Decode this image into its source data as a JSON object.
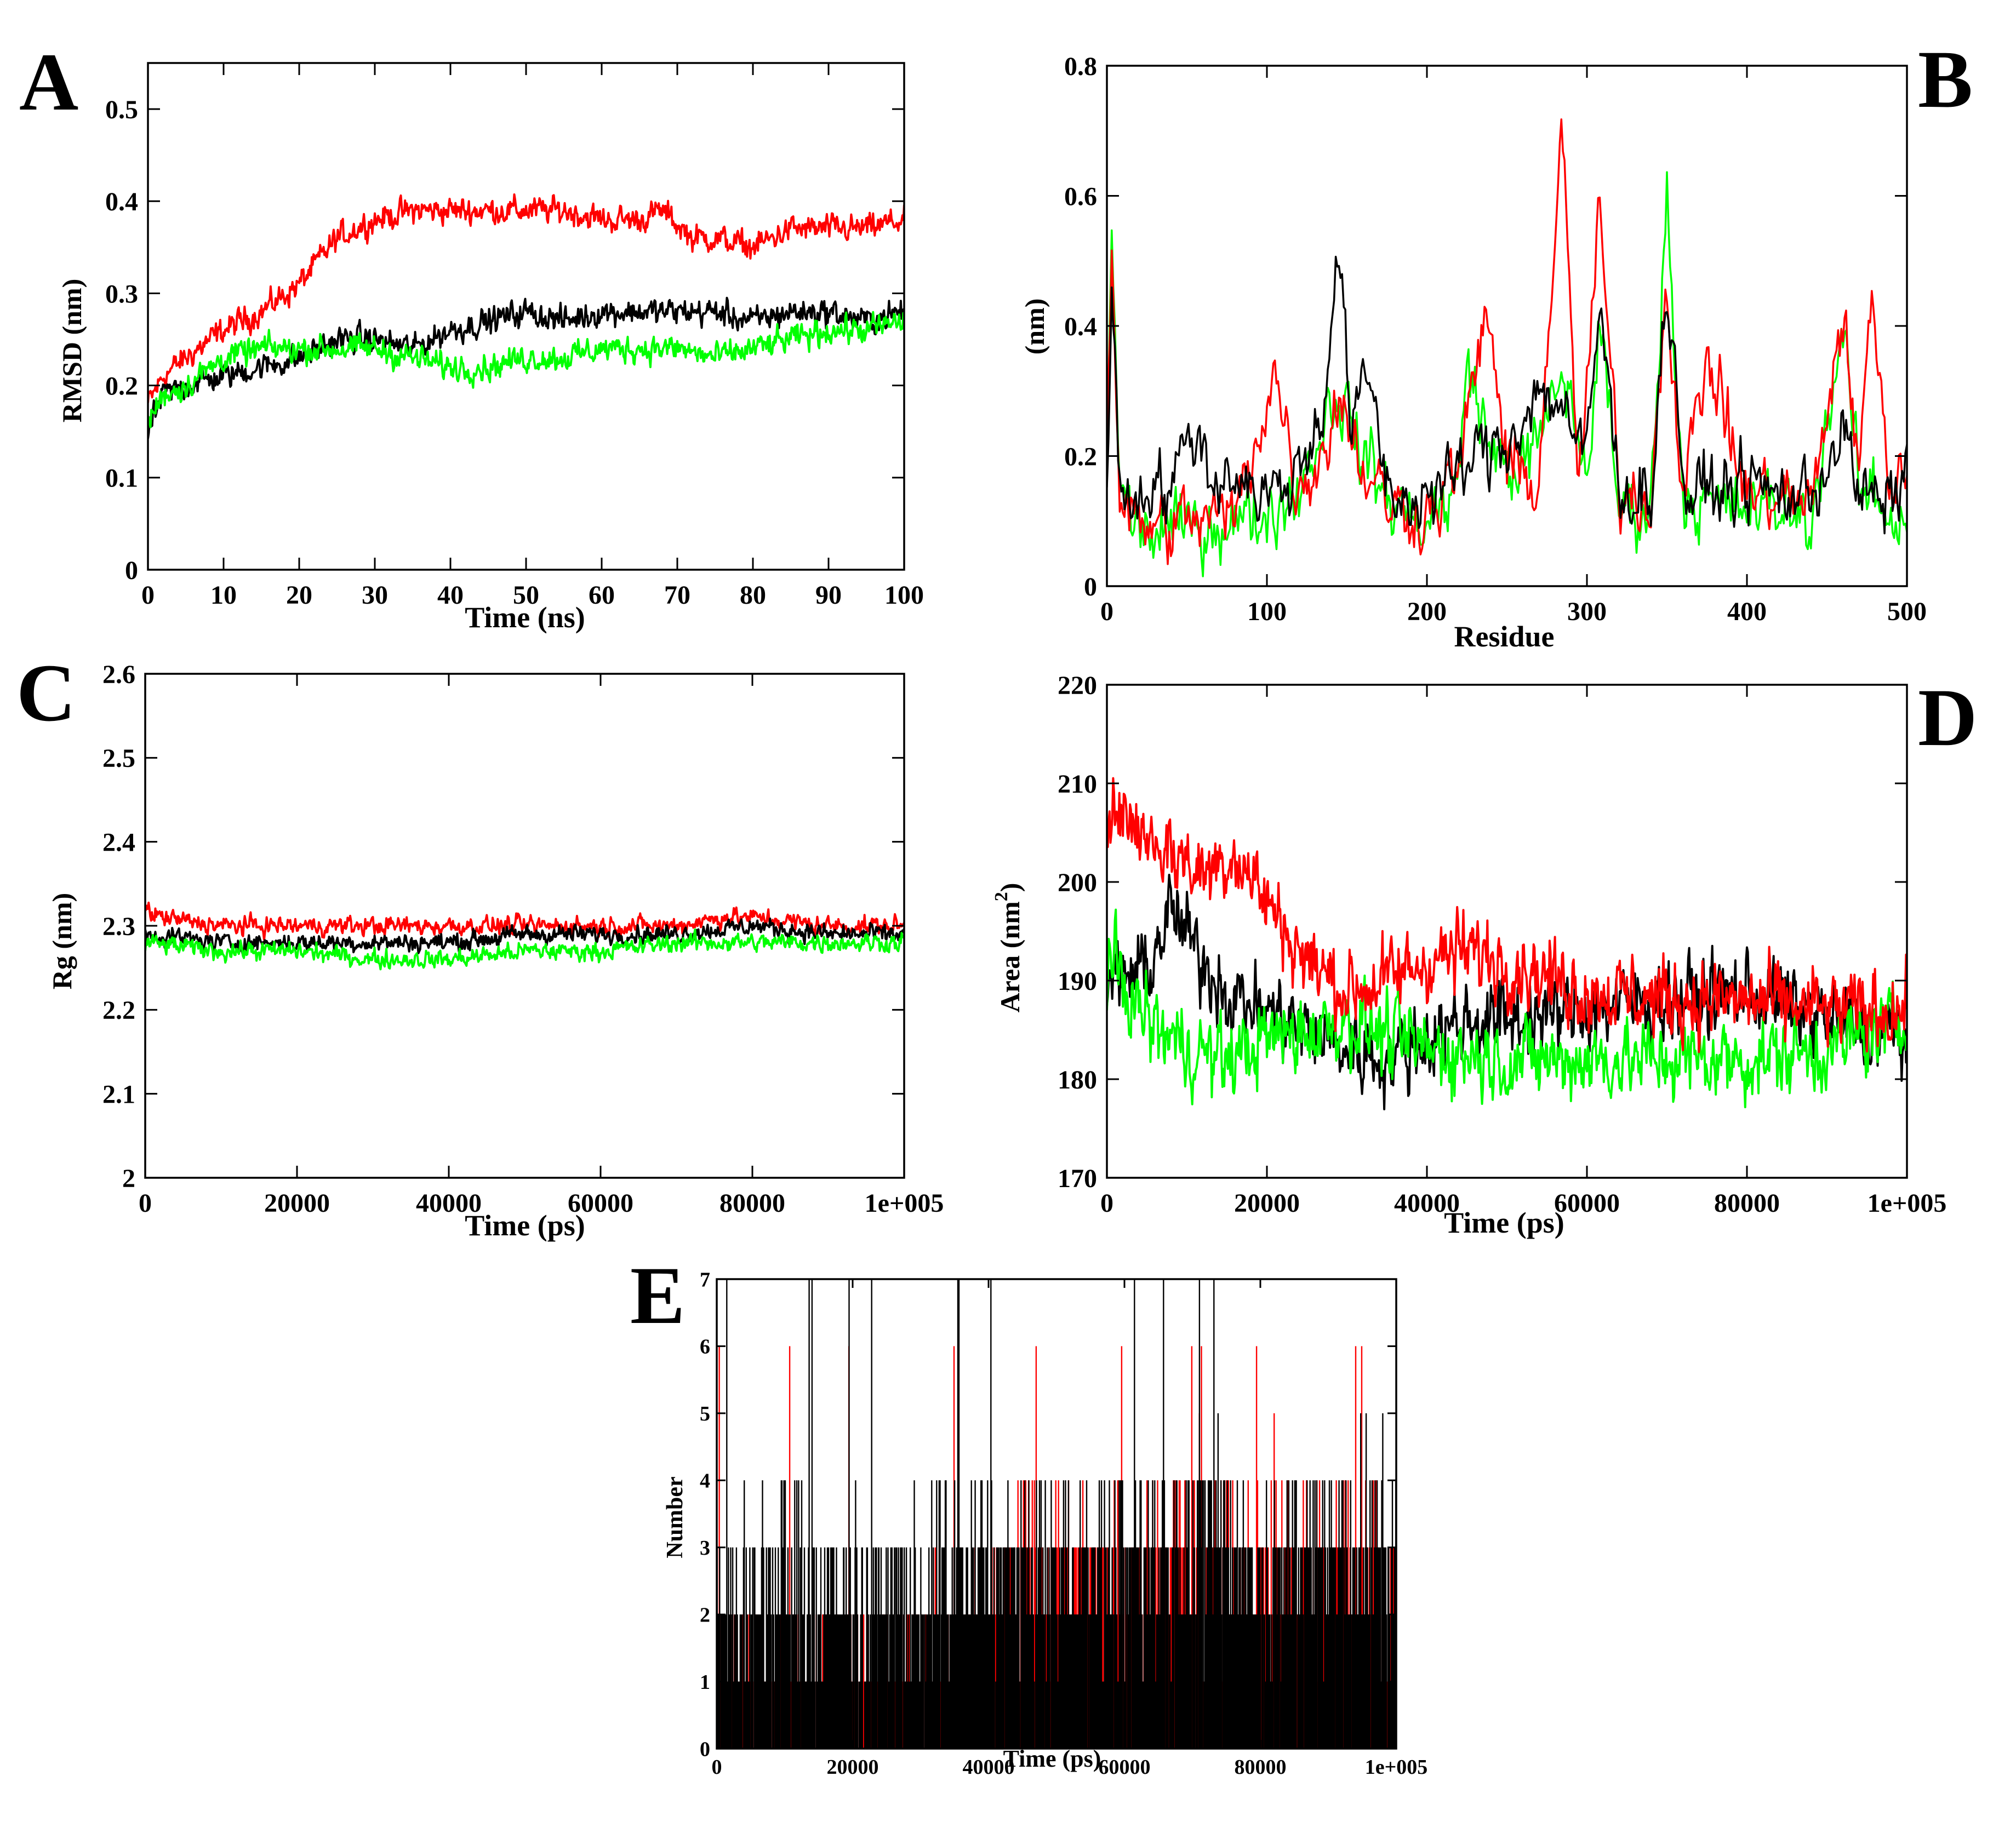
{
  "figure": {
    "series_colors": {
      "black": "#000000",
      "red": "#ff0000",
      "green": "#00ff00"
    }
  },
  "chart_data": [
    {
      "id": "A",
      "panel_label": "A",
      "type": "line",
      "xlabel": "Time (ns)",
      "ylabel": "RMSD (nm)",
      "xlim": [
        0,
        100
      ],
      "ylim": [
        0,
        0.55
      ],
      "xticks": [
        0,
        10,
        20,
        30,
        40,
        50,
        60,
        70,
        80,
        90,
        100
      ],
      "xtick_labels": [
        "0",
        "10",
        "20",
        "30",
        "40",
        "50",
        "60",
        "70",
        "80",
        "90",
        "100"
      ],
      "yticks": [
        0,
        0.1,
        0.2,
        0.3,
        0.4,
        0.5
      ],
      "ytick_labels": [
        "0",
        "0.1",
        "0.2",
        "0.3",
        "0.4",
        "0.5"
      ],
      "series": [
        {
          "name": "red",
          "color": "#ff0000",
          "noise": 0.008,
          "x": [
            0,
            2,
            5,
            10,
            15,
            20,
            25,
            30,
            35,
            40,
            45,
            50,
            55,
            60,
            65,
            68,
            72,
            75,
            80,
            85,
            90,
            95,
            100
          ],
          "y": [
            0.18,
            0.21,
            0.23,
            0.26,
            0.28,
            0.31,
            0.36,
            0.38,
            0.39,
            0.39,
            0.39,
            0.39,
            0.39,
            0.38,
            0.38,
            0.39,
            0.36,
            0.36,
            0.35,
            0.37,
            0.37,
            0.37,
            0.38
          ]
        },
        {
          "name": "black",
          "color": "#000000",
          "noise": 0.008,
          "x": [
            0,
            2,
            5,
            10,
            15,
            20,
            25,
            30,
            35,
            40,
            45,
            50,
            55,
            60,
            65,
            70,
            75,
            80,
            85,
            90,
            95,
            100
          ],
          "y": [
            0.15,
            0.19,
            0.2,
            0.21,
            0.22,
            0.23,
            0.25,
            0.25,
            0.24,
            0.26,
            0.27,
            0.28,
            0.27,
            0.28,
            0.28,
            0.28,
            0.28,
            0.27,
            0.28,
            0.28,
            0.27,
            0.28
          ]
        },
        {
          "name": "green",
          "color": "#00ff00",
          "noise": 0.008,
          "x": [
            0,
            2,
            5,
            10,
            15,
            20,
            25,
            30,
            35,
            40,
            45,
            50,
            55,
            60,
            65,
            70,
            75,
            80,
            85,
            90,
            95,
            100
          ],
          "y": [
            0.16,
            0.19,
            0.2,
            0.23,
            0.24,
            0.24,
            0.24,
            0.24,
            0.23,
            0.22,
            0.22,
            0.23,
            0.23,
            0.24,
            0.24,
            0.24,
            0.23,
            0.24,
            0.25,
            0.26,
            0.26,
            0.27
          ]
        }
      ]
    },
    {
      "id": "B",
      "panel_label": "B",
      "type": "line",
      "xlabel": "Residue",
      "ylabel": "(nm)",
      "xlim": [
        0,
        500
      ],
      "ylim": [
        0,
        0.8
      ],
      "xticks": [
        0,
        100,
        200,
        300,
        400,
        500
      ],
      "xtick_labels": [
        "0",
        "100",
        "200",
        "300",
        "400",
        "500"
      ],
      "yticks": [
        0,
        0.2,
        0.4,
        0.6,
        0.8
      ],
      "ytick_labels": [
        "0",
        "0.2",
        "0.4",
        "0.6",
        "0.8"
      ],
      "series": [
        {
          "name": "green",
          "color": "#00ff00",
          "noise": 0.03,
          "x": [
            0,
            3,
            8,
            15,
            30,
            50,
            80,
            100,
            120,
            140,
            145,
            160,
            180,
            200,
            220,
            225,
            240,
            260,
            275,
            285,
            300,
            308,
            320,
            340,
            350,
            360,
            380,
            400,
            420,
            440,
            460,
            470,
            480,
            490,
            500
          ],
          "y": [
            0.18,
            0.57,
            0.15,
            0.1,
            0.08,
            0.09,
            0.1,
            0.11,
            0.15,
            0.28,
            0.3,
            0.2,
            0.12,
            0.1,
            0.15,
            0.36,
            0.2,
            0.18,
            0.25,
            0.33,
            0.17,
            0.4,
            0.12,
            0.12,
            0.6,
            0.14,
            0.12,
            0.12,
            0.12,
            0.1,
            0.4,
            0.14,
            0.14,
            0.1,
            0.12
          ]
        },
        {
          "name": "red",
          "color": "#ff0000",
          "noise": 0.03,
          "x": [
            0,
            3,
            8,
            15,
            30,
            50,
            80,
            105,
            120,
            140,
            145,
            160,
            180,
            200,
            220,
            238,
            250,
            270,
            284,
            295,
            308,
            320,
            340,
            350,
            360,
            375,
            400,
            420,
            440,
            460,
            470,
            478,
            490,
            500
          ],
          "y": [
            0.2,
            0.52,
            0.14,
            0.1,
            0.09,
            0.1,
            0.11,
            0.33,
            0.14,
            0.24,
            0.3,
            0.18,
            0.12,
            0.11,
            0.18,
            0.43,
            0.18,
            0.16,
            0.7,
            0.15,
            0.57,
            0.15,
            0.13,
            0.48,
            0.13,
            0.36,
            0.14,
            0.14,
            0.12,
            0.42,
            0.16,
            0.47,
            0.13,
            0.18
          ]
        },
        {
          "name": "black",
          "color": "#000000",
          "noise": 0.03,
          "x": [
            0,
            3,
            8,
            15,
            25,
            40,
            55,
            65,
            80,
            95,
            110,
            125,
            135,
            145,
            152,
            165,
            175,
            190,
            210,
            230,
            250,
            270,
            285,
            298,
            308,
            320,
            340,
            350,
            362,
            380,
            400,
            420,
            440,
            460,
            470,
            490,
            500
          ],
          "y": [
            0.15,
            0.5,
            0.14,
            0.13,
            0.16,
            0.15,
            0.25,
            0.16,
            0.18,
            0.14,
            0.15,
            0.2,
            0.28,
            0.52,
            0.25,
            0.32,
            0.15,
            0.13,
            0.15,
            0.2,
            0.22,
            0.3,
            0.28,
            0.18,
            0.43,
            0.15,
            0.14,
            0.46,
            0.13,
            0.15,
            0.16,
            0.14,
            0.14,
            0.24,
            0.14,
            0.12,
            0.2
          ]
        }
      ]
    },
    {
      "id": "C",
      "panel_label": "C",
      "type": "line",
      "xlabel": "Time (ps)",
      "ylabel": "Rg (nm)",
      "xlim": [
        0,
        100000
      ],
      "ylim": [
        2,
        2.6
      ],
      "xticks": [
        0,
        20000,
        40000,
        60000,
        80000,
        100000
      ],
      "xtick_labels": [
        "0",
        "20000",
        "40000",
        "60000",
        "80000",
        "1e+005"
      ],
      "yticks": [
        2,
        2.1,
        2.2,
        2.3,
        2.4,
        2.5,
        2.6
      ],
      "ytick_labels": [
        "2",
        "2.1",
        "2.2",
        "2.3",
        "2.4",
        "2.5",
        "2.6"
      ],
      "series": [
        {
          "name": "red",
          "color": "#ff0000",
          "noise": 0.006,
          "x": [
            0,
            2000,
            10000,
            20000,
            30000,
            40000,
            50000,
            60000,
            70000,
            76000,
            80000,
            90000,
            100000
          ],
          "y": [
            2.32,
            2.31,
            2.3,
            2.3,
            2.3,
            2.3,
            2.3,
            2.3,
            2.3,
            2.31,
            2.31,
            2.3,
            2.3
          ]
        },
        {
          "name": "black",
          "color": "#000000",
          "noise": 0.006,
          "x": [
            0,
            10000,
            20000,
            30000,
            40000,
            50000,
            60000,
            70000,
            80000,
            90000,
            100000
          ],
          "y": [
            2.29,
            2.28,
            2.28,
            2.28,
            2.28,
            2.29,
            2.29,
            2.29,
            2.3,
            2.29,
            2.29
          ]
        },
        {
          "name": "green",
          "color": "#00ff00",
          "noise": 0.006,
          "x": [
            0,
            10000,
            20000,
            30000,
            40000,
            50000,
            60000,
            70000,
            80000,
            90000,
            100000
          ],
          "y": [
            2.28,
            2.27,
            2.27,
            2.26,
            2.26,
            2.27,
            2.27,
            2.28,
            2.28,
            2.28,
            2.28
          ]
        }
      ]
    },
    {
      "id": "D",
      "panel_label": "D",
      "type": "line",
      "xlabel": "Time (ps)",
      "ylabel": "Area (nm",
      "ylabel_sup": "2",
      "ylabel_close": ")",
      "xlim": [
        0,
        100000
      ],
      "ylim": [
        170,
        220
      ],
      "xticks": [
        0,
        20000,
        40000,
        60000,
        80000,
        100000
      ],
      "xtick_labels": [
        "0",
        "20000",
        "40000",
        "60000",
        "80000",
        "1e+005"
      ],
      "yticks": [
        170,
        180,
        190,
        200,
        210,
        220
      ],
      "ytick_labels": [
        "170",
        "180",
        "190",
        "200",
        "210",
        "220"
      ],
      "series": [
        {
          "name": "black",
          "color": "#000000",
          "noise": 2.2,
          "x": [
            0,
            5000,
            8000,
            12000,
            16000,
            20000,
            25000,
            30000,
            35000,
            40000,
            45000,
            50000,
            60000,
            70000,
            80000,
            90000,
            100000
          ],
          "y": [
            190,
            191,
            197,
            192,
            188,
            187,
            185,
            183,
            182,
            184,
            186,
            186,
            187,
            188,
            189,
            186,
            184
          ]
        },
        {
          "name": "green",
          "color": "#00ff00",
          "noise": 2.2,
          "x": [
            0,
            5000,
            10000,
            15000,
            20000,
            25000,
            30000,
            40000,
            50000,
            60000,
            70000,
            80000,
            90000,
            100000
          ],
          "y": [
            192,
            186,
            183,
            182,
            184,
            185,
            186,
            183,
            182,
            182,
            182,
            182,
            183,
            186
          ]
        },
        {
          "name": "red",
          "color": "#ff0000",
          "noise": 2.2,
          "x": [
            0,
            3000,
            8000,
            12000,
            16000,
            20000,
            25000,
            30000,
            35000,
            40000,
            45000,
            50000,
            60000,
            70000,
            80000,
            90000,
            100000
          ],
          "y": [
            208,
            206,
            203,
            201,
            203,
            198,
            192,
            189,
            190,
            192,
            193,
            192,
            189,
            188,
            188,
            187,
            187
          ]
        }
      ]
    },
    {
      "id": "E",
      "panel_label": "E",
      "type": "line",
      "style": "hbond-bars",
      "xlabel": "Time (ps)",
      "ylabel": "Number",
      "xlim": [
        0,
        100000
      ],
      "ylim": [
        0,
        7
      ],
      "xticks": [
        0,
        20000,
        40000,
        60000,
        80000,
        100000
      ],
      "xtick_labels": [
        "0",
        "20000",
        "40000",
        "60000",
        "80000",
        "1e+005"
      ],
      "yticks": [
        0,
        1,
        2,
        3,
        4,
        5,
        6,
        7
      ],
      "ytick_labels": [
        "0",
        "1",
        "2",
        "3",
        "4",
        "5",
        "6",
        "7"
      ],
      "series": [
        {
          "name": "red",
          "color": "#ff0000",
          "x": [
            0,
            35000,
            45000,
            60000,
            70000,
            80000,
            100000
          ],
          "y": [
            1.0,
            1.3,
            2.2,
            2.7,
            2.5,
            2.3,
            2.5
          ],
          "spread": [
            1.0,
            1.2,
            1.6,
            1.8,
            1.8,
            1.7,
            1.6
          ],
          "peak": 6
        },
        {
          "name": "black",
          "color": "#000000",
          "x": [
            0,
            10000,
            20000,
            40000,
            60000,
            70000,
            80000,
            100000
          ],
          "y": [
            2.0,
            2.5,
            2.2,
            2.6,
            2.7,
            2.9,
            2.8,
            3.0
          ],
          "spread": [
            1.2,
            1.5,
            1.2,
            1.3,
            1.3,
            1.4,
            1.4,
            1.3
          ],
          "peak": 7
        }
      ]
    }
  ]
}
